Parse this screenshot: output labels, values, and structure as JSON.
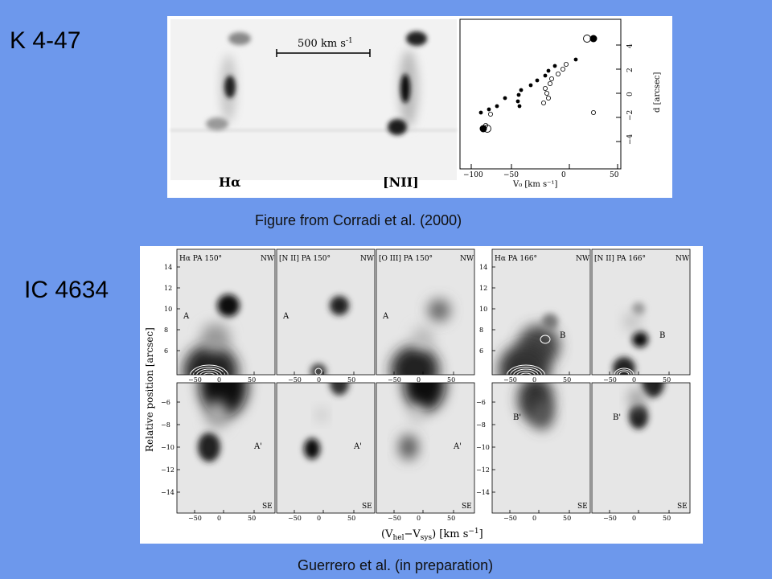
{
  "titles": {
    "k447": "K 4-47",
    "ic4634": "IC 4634"
  },
  "captions": {
    "top": "Figure from Corradi et al. (2000)",
    "bottom": "Guerrero et al. (in preparation)"
  },
  "fig1": {
    "scale_bar": "500 km s",
    "scale_sup": "-1",
    "left_label": "Hα",
    "right_label": "[NII]",
    "plot": {
      "xlabel": "V₀ [km s⁻¹]",
      "ylabel": "d [arcsec]",
      "xticks": [
        "−100",
        "−50",
        "0",
        "50"
      ],
      "yticks": [
        "4",
        "2",
        "0",
        "−2",
        "−4"
      ]
    }
  },
  "fig2": {
    "ylabel": "Relative position [arcsec]",
    "xlabel": "(V",
    "xlabel_sub1": "hel",
    "xlabel_mid": "−V",
    "xlabel_sub2": "sys",
    "xlabel_end": ") [km s",
    "xlabel_sup": "−1",
    "xlabel_close": "]",
    "panels": [
      {
        "label": "Hα PA 150°",
        "nw": "NW",
        "se": "SE",
        "top": "A",
        "bottom": "A'"
      },
      {
        "label": "[N II] PA 150°",
        "nw": "NW",
        "se": "SE",
        "top": "A",
        "bottom": "A'"
      },
      {
        "label": "[O III] PA 150°",
        "nw": "NW",
        "se": "SE",
        "top": "A",
        "bottom": "A'"
      },
      {
        "label": "Hα PA 166°",
        "nw": "NW",
        "se": "SE",
        "top": "B",
        "bottom": "B'"
      },
      {
        "label": "[N II] PA 166°",
        "nw": "NW",
        "se": "SE",
        "top": "B",
        "bottom": "B'"
      }
    ],
    "yticks_top": [
      "14",
      "12",
      "10",
      "8",
      "6"
    ],
    "yticks_bottom": [
      "−6",
      "−8",
      "−10",
      "−12",
      "−14"
    ],
    "xticks": [
      "−50",
      "0",
      "50"
    ]
  }
}
